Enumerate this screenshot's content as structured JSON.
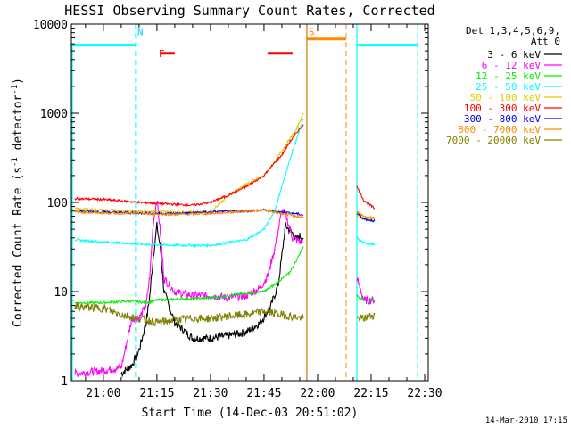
{
  "chart_data": {
    "type": "line",
    "title": "HESSI Observing Summary Count Rates, Corrected",
    "xlabel": "Start Time (14-Dec-03 20:51:02)",
    "ylabel": "Corrected Count Rate (s^-1 detector^-1)",
    "y_scale": "log",
    "ylim": [
      1,
      10000
    ],
    "xlim": [
      "20:51:02",
      "22:31:00"
    ],
    "x_ticks": [
      "21:00",
      "21:15",
      "21:30",
      "21:45",
      "22:00",
      "22:15",
      "22:30"
    ],
    "y_ticks": [
      "1",
      "10",
      "100",
      "1000",
      "10000"
    ],
    "legend_title": [
      "Det 1,3,4,5,6,9,",
      "Att 0"
    ],
    "legend_position": "right",
    "timestamp": "14-Mar-2010 17:15",
    "gap": [
      "21:56",
      "22:11"
    ],
    "series": [
      {
        "name": "3 - 6 keV",
        "color": "#000000",
        "points": [
          [
            "21:05",
            1.2
          ],
          [
            "21:08",
            1.5
          ],
          [
            "21:10",
            2.2
          ],
          [
            "21:12",
            4.5
          ],
          [
            "21:13",
            9
          ],
          [
            "21:14",
            25
          ],
          [
            "21:15",
            55
          ],
          [
            "21:16",
            30
          ],
          [
            "21:17",
            10
          ],
          [
            "21:20",
            4.5
          ],
          [
            "21:25",
            3
          ],
          [
            "21:30",
            3
          ],
          [
            "21:35",
            3.2
          ],
          [
            "21:40",
            3.5
          ],
          [
            "21:44",
            4.5
          ],
          [
            "21:47",
            7
          ],
          [
            "21:49",
            12
          ],
          [
            "21:50",
            25
          ],
          [
            "21:51",
            55
          ],
          [
            "21:53",
            45
          ],
          [
            "21:54",
            38
          ],
          [
            "21:55",
            42
          ],
          [
            "21:56",
            40
          ]
        ]
      },
      {
        "name": "6 - 12 keV",
        "color": "#ff00ff",
        "points": [
          [
            "20:52",
            1.2
          ],
          [
            "21:00",
            1.3
          ],
          [
            "21:05",
            1.4
          ],
          [
            "21:08",
            5
          ],
          [
            "21:10",
            5
          ],
          [
            "21:12",
            7
          ],
          [
            "21:13",
            15
          ],
          [
            "21:14",
            60
          ],
          [
            "21:15",
            110
          ],
          [
            "21:16",
            45
          ],
          [
            "21:17",
            14
          ],
          [
            "21:20",
            10
          ],
          [
            "21:25",
            9
          ],
          [
            "21:30",
            9
          ],
          [
            "21:35",
            8.5
          ],
          [
            "21:40",
            9
          ],
          [
            "21:44",
            11
          ],
          [
            "21:46",
            15
          ],
          [
            "21:48",
            30
          ],
          [
            "21:50",
            80
          ],
          [
            "21:51",
            75
          ],
          [
            "21:53",
            40
          ],
          [
            "21:56",
            35
          ],
          [
            "22:11",
            14
          ],
          [
            "22:13",
            8
          ],
          [
            "22:16",
            8
          ]
        ]
      },
      {
        "name": "12 - 25 keV",
        "color": "#00ee00",
        "points": [
          [
            "20:52",
            7.5
          ],
          [
            "21:00",
            7.5
          ],
          [
            "21:08",
            7.8
          ],
          [
            "21:12",
            7.5
          ],
          [
            "21:15",
            8
          ],
          [
            "21:20",
            8.2
          ],
          [
            "21:30",
            8.5
          ],
          [
            "21:40",
            9.5
          ],
          [
            "21:45",
            10
          ],
          [
            "21:48",
            12
          ],
          [
            "21:52",
            16
          ],
          [
            "21:54",
            22
          ],
          [
            "21:56",
            32
          ],
          [
            "22:11",
            9
          ],
          [
            "22:13",
            8
          ],
          [
            "22:16",
            8
          ]
        ]
      },
      {
        "name": "25 - 50 keV",
        "color": "#00ffff",
        "points": [
          [
            "20:52",
            38
          ],
          [
            "21:00",
            36
          ],
          [
            "21:10",
            34
          ],
          [
            "21:20",
            33
          ],
          [
            "21:30",
            33
          ],
          [
            "21:40",
            38
          ],
          [
            "21:45",
            50
          ],
          [
            "21:48",
            80
          ],
          [
            "21:50",
            150
          ],
          [
            "21:52",
            280
          ],
          [
            "21:54",
            500
          ],
          [
            "21:56",
            850
          ],
          [
            "22:11",
            40
          ],
          [
            "22:13",
            35
          ],
          [
            "22:16",
            34
          ]
        ]
      },
      {
        "name": "50 - 100 keV",
        "color": "#ddcc00",
        "points": [
          [
            "20:52",
            85
          ],
          [
            "21:00",
            82
          ],
          [
            "21:10",
            80
          ],
          [
            "21:20",
            78
          ],
          [
            "21:30",
            78
          ],
          [
            "21:35",
            120
          ],
          [
            "21:40",
            160
          ],
          [
            "21:45",
            200
          ],
          [
            "21:48",
            280
          ],
          [
            "21:50",
            380
          ],
          [
            "21:52",
            500
          ],
          [
            "21:54",
            650
          ],
          [
            "21:56",
            1000
          ],
          [
            "22:11",
            70
          ],
          [
            "22:13",
            65
          ],
          [
            "22:16",
            65
          ]
        ]
      },
      {
        "name": "100 - 300 keV",
        "color": "#ff0000",
        "points": [
          [
            "20:52",
            110
          ],
          [
            "21:00",
            108
          ],
          [
            "21:10",
            100
          ],
          [
            "21:20",
            95
          ],
          [
            "21:25",
            93
          ],
          [
            "21:30",
            100
          ],
          [
            "21:35",
            120
          ],
          [
            "21:40",
            150
          ],
          [
            "21:45",
            200
          ],
          [
            "21:48",
            280
          ],
          [
            "21:50",
            340
          ],
          [
            "21:52",
            460
          ],
          [
            "21:54",
            600
          ],
          [
            "21:56",
            750
          ],
          [
            "22:11",
            150
          ],
          [
            "22:13",
            105
          ],
          [
            "22:16",
            85
          ]
        ]
      },
      {
        "name": "300 - 800 keV",
        "color": "#0000ee",
        "points": [
          [
            "20:52",
            80
          ],
          [
            "21:00",
            78
          ],
          [
            "21:10",
            76
          ],
          [
            "21:20",
            75
          ],
          [
            "21:30",
            78
          ],
          [
            "21:40",
            80
          ],
          [
            "21:45",
            82
          ],
          [
            "21:50",
            78
          ],
          [
            "21:54",
            75
          ],
          [
            "21:56",
            72
          ],
          [
            "22:11",
            75
          ],
          [
            "22:13",
            65
          ],
          [
            "22:16",
            62
          ]
        ]
      },
      {
        "name": "800 - 7000 keV",
        "color": "#ff8800",
        "points": [
          [
            "20:52",
            78
          ],
          [
            "21:00",
            76
          ],
          [
            "21:10",
            75
          ],
          [
            "21:20",
            73
          ],
          [
            "21:30",
            75
          ],
          [
            "21:40",
            80
          ],
          [
            "21:45",
            82
          ],
          [
            "21:50",
            75
          ],
          [
            "21:54",
            70
          ],
          [
            "21:56",
            68
          ],
          [
            "22:11",
            80
          ],
          [
            "22:13",
            68
          ],
          [
            "22:16",
            68
          ]
        ]
      },
      {
        "name": "7000 - 20000 keV",
        "color": "#808000",
        "points": [
          [
            "20:52",
            6.8
          ],
          [
            "21:00",
            6.5
          ],
          [
            "21:05",
            5.5
          ],
          [
            "21:10",
            5
          ],
          [
            "21:15",
            4.5
          ],
          [
            "21:20",
            4.8
          ],
          [
            "21:25",
            5
          ],
          [
            "21:30",
            5
          ],
          [
            "21:35",
            5.3
          ],
          [
            "21:40",
            5.5
          ],
          [
            "21:45",
            6
          ],
          [
            "21:50",
            5.5
          ],
          [
            "21:56",
            5
          ],
          [
            "22:11",
            5
          ],
          [
            "22:13",
            5
          ],
          [
            "22:16",
            5.5
          ]
        ]
      }
    ],
    "flags": [
      {
        "label": "N",
        "color": "#00ccff",
        "x": "21:09"
      },
      {
        "label": "F",
        "color": "#ff0000",
        "x": "21:15"
      },
      {
        "label": "S",
        "color": "#ff8800",
        "x": "21:57"
      }
    ],
    "flag_bars": [
      {
        "color": "#00ffff",
        "x": [
          "20:51",
          "21:09"
        ],
        "y": 5800
      },
      {
        "color": "#00ffff",
        "x": [
          "22:11",
          "22:28"
        ],
        "y": 5800
      },
      {
        "color": "#ff0000",
        "x": [
          "21:16",
          "21:20"
        ],
        "y": 4700
      },
      {
        "color": "#ff0000",
        "x": [
          "21:46",
          "21:53"
        ],
        "y": 4700
      },
      {
        "color": "#ff8800",
        "x": [
          "21:57",
          "22:08"
        ],
        "y": 6800
      }
    ],
    "night_lines": [
      {
        "color": "#00ffff",
        "x": "21:09"
      },
      {
        "color": "#00ffff",
        "x": "22:28"
      },
      {
        "color": "#ff8800",
        "x": "22:08"
      }
    ]
  }
}
